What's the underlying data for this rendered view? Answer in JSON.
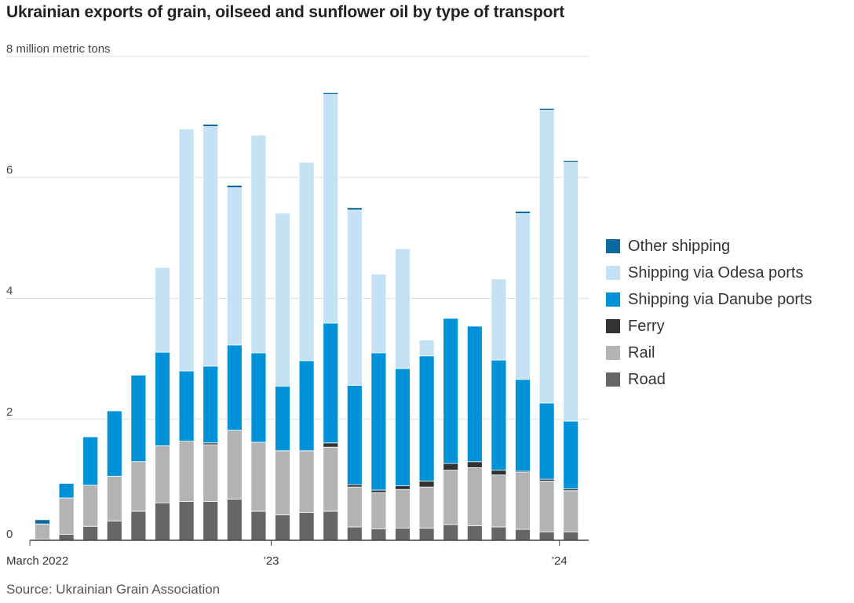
{
  "title": "Ukrainian exports of grain, oilseed and sunflower oil by type of transport",
  "source": "Source: Ukrainian Grain Association",
  "chart_data": {
    "type": "bar",
    "stacked": true,
    "ylabel": "8 million metric tons",
    "ylim": [
      0,
      8
    ],
    "yticks": [
      0,
      2,
      4,
      6
    ],
    "ytick_labels": [
      "0",
      "2",
      "4",
      "6"
    ],
    "xticks": [
      {
        "index": 0,
        "label": "March 2022"
      },
      {
        "index": 10,
        "label": "’23"
      },
      {
        "index": 22,
        "label": "’24"
      }
    ],
    "categories": [
      "Mar 2022",
      "Apr 2022",
      "May 2022",
      "Jun 2022",
      "Jul 2022",
      "Aug 2022",
      "Sep 2022",
      "Oct 2022",
      "Nov 2022",
      "Dec 2022",
      "Jan 2023",
      "Feb 2023",
      "Mar 2023",
      "Apr 2023",
      "May 2023",
      "Jun 2023",
      "Jul 2023",
      "Aug 2023",
      "Sep 2023",
      "Oct 2023",
      "Nov 2023",
      "Dec 2023",
      "Jan 2024"
    ],
    "series": [
      {
        "name": "Road",
        "color": "#666666",
        "values": [
          0.02,
          0.1,
          0.23,
          0.32,
          0.48,
          0.62,
          0.64,
          0.64,
          0.68,
          0.48,
          0.42,
          0.46,
          0.48,
          0.22,
          0.19,
          0.2,
          0.2,
          0.26,
          0.24,
          0.22,
          0.18,
          0.14,
          0.14
        ]
      },
      {
        "name": "Rail",
        "color": "#b3b3b3",
        "values": [
          0.25,
          0.6,
          0.68,
          0.74,
          0.82,
          0.94,
          1.0,
          0.94,
          1.14,
          1.14,
          1.06,
          1.02,
          1.06,
          0.66,
          0.6,
          0.64,
          0.68,
          0.9,
          0.96,
          0.86,
          0.94,
          0.84,
          0.68
        ]
      },
      {
        "name": "Ferry",
        "color": "#333333",
        "values": [
          0.0,
          0.0,
          0.0,
          0.0,
          0.0,
          0.0,
          0.0,
          0.03,
          0.0,
          0.0,
          0.0,
          0.0,
          0.07,
          0.04,
          0.04,
          0.06,
          0.1,
          0.11,
          0.1,
          0.08,
          0.02,
          0.03,
          0.03
        ]
      },
      {
        "name": "Shipping via Danube ports",
        "color": "#0092d8",
        "values": [
          0.0,
          0.24,
          0.8,
          1.08,
          1.43,
          1.55,
          1.16,
          1.27,
          1.41,
          1.48,
          1.07,
          1.49,
          1.98,
          1.64,
          2.27,
          1.94,
          2.07,
          2.4,
          2.24,
          1.82,
          1.52,
          1.26,
          1.12
        ]
      },
      {
        "name": "Shipping via Odesa ports",
        "color": "#c5e2f4",
        "values": [
          0.0,
          0.0,
          0.0,
          0.0,
          0.0,
          1.4,
          4.0,
          3.96,
          2.6,
          3.6,
          2.86,
          3.28,
          3.78,
          2.9,
          1.3,
          1.98,
          0.26,
          0.0,
          0.0,
          1.34,
          2.74,
          4.84,
          4.28
        ]
      },
      {
        "name": "Other shipping",
        "color": "#0c6aa1",
        "values": [
          0.07,
          0.0,
          0.0,
          0.0,
          0.0,
          0.0,
          0.0,
          0.04,
          0.04,
          0.0,
          0.0,
          0.0,
          0.03,
          0.04,
          0.0,
          0.0,
          0.0,
          0.0,
          0.0,
          0.0,
          0.04,
          0.03,
          0.03
        ]
      }
    ],
    "legend_order": [
      "Other shipping",
      "Shipping via Odesa ports",
      "Shipping via Danube ports",
      "Ferry",
      "Rail",
      "Road"
    ],
    "legend_position": "right"
  }
}
